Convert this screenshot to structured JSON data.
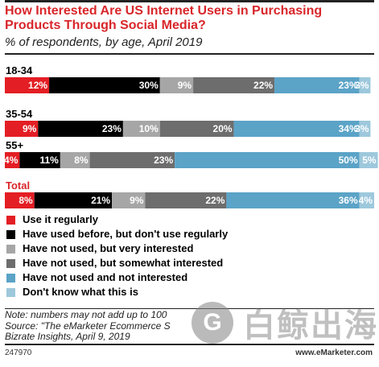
{
  "title": "How Interested Are US Internet Users in Purchasing Products Through Social Media?",
  "subtitle": "% of respondents, by age, April 2019",
  "chart_data": {
    "type": "stacked-bar-horizontal",
    "title": "How Interested Are US Internet Users in Purchasing Products Through Social Media?",
    "subtitle": "% of respondents, by age, April 2019",
    "categories": [
      "18-34",
      "35-54",
      "55+",
      "Total"
    ],
    "series": [
      {
        "name": "Use it regularly",
        "color": "#e31e24",
        "values": [
          12,
          9,
          4,
          8
        ],
        "labels": [
          "12%",
          "9%",
          "4%",
          "8%"
        ]
      },
      {
        "name": "Have used before, but don't use regularly",
        "color": "#000000",
        "values": [
          30,
          23,
          11,
          21
        ],
        "labels": [
          "30%",
          "23%",
          "11%",
          "21%"
        ]
      },
      {
        "name": "Have not used, but very interested",
        "color": "#a6a6a6",
        "values": [
          9,
          10,
          8,
          9
        ],
        "labels": [
          "9%",
          "10%",
          "8%",
          "9%"
        ]
      },
      {
        "name": "Have not used, but somewhat interested",
        "color": "#6d6d6d",
        "values": [
          22,
          20,
          23,
          22
        ],
        "labels": [
          "22%",
          "20%",
          "23%",
          "22%"
        ]
      },
      {
        "name": "Have not used and not interested",
        "color": "#5ba3c7",
        "values": [
          23,
          34,
          50,
          36
        ],
        "labels": [
          "23%",
          "34%",
          "50%",
          "36%"
        ]
      },
      {
        "name": "Don't know what this is",
        "color": "#9dc8dc",
        "values": [
          3,
          3,
          5,
          4
        ],
        "labels": [
          "3%",
          "3%",
          "5%",
          "4%"
        ]
      }
    ],
    "category_colors": [
      "#000000",
      "#000000",
      "#000000",
      "#d8262a"
    ],
    "xlim": [
      0,
      100
    ],
    "legend_position": "bottom",
    "grid": false
  },
  "notes": [
    "Note: numbers may not add up to 100",
    "Source: \"The eMarketer Ecommerce S",
    "Bizrate Insights, April 9, 2019"
  ],
  "chart_id": "247970",
  "brand": "www.eMarketer.com",
  "watermark_text": "白鲸出海"
}
